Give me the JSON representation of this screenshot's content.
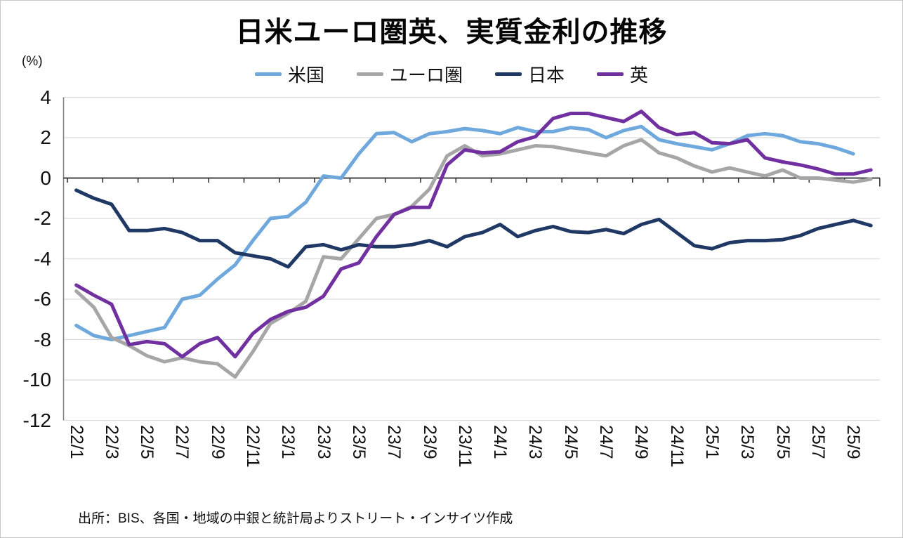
{
  "header": {
    "title": "日米ユーロ圏英、実質金利の推移",
    "y_axis_unit": "(%)"
  },
  "source_note": "出所：BIS、各国・地域の中銀と統計局よりストリート・インサイツ作成",
  "chart_data": {
    "type": "line",
    "title": "日米ユーロ圏英、実質金利の推移",
    "ylabel": "(%)",
    "xlabel": "",
    "ylim": [
      -12,
      4
    ],
    "ytick_step": 2,
    "grid": true,
    "legend_position": "top",
    "x_tick_labels": [
      "22/1",
      "22/3",
      "22/5",
      "22/7",
      "22/9",
      "22/11",
      "23/1",
      "23/3",
      "23/5",
      "23/7",
      "23/9",
      "23/11",
      "24/1",
      "24/3",
      "24/5",
      "24/7",
      "24/9",
      "24/11",
      "25/1",
      "25/3",
      "25/5",
      "25/7",
      "25/9"
    ],
    "categories": [
      "22/1",
      "22/2",
      "22/3",
      "22/4",
      "22/5",
      "22/6",
      "22/7",
      "22/8",
      "22/9",
      "22/10",
      "22/11",
      "22/12",
      "23/1",
      "23/2",
      "23/3",
      "23/4",
      "23/5",
      "23/6",
      "23/7",
      "23/8",
      "23/9",
      "23/10",
      "23/11",
      "23/12",
      "24/1",
      "24/2",
      "24/3",
      "24/4",
      "24/5",
      "24/6",
      "24/7",
      "24/8",
      "24/9",
      "24/10",
      "24/11",
      "24/12",
      "25/1",
      "25/2",
      "25/3",
      "25/4",
      "25/5",
      "25/6",
      "25/7",
      "25/8",
      "25/9",
      "25/10"
    ],
    "series": [
      {
        "name": "米国",
        "color": "#6FA8DC",
        "values": [
          -7.3,
          -7.8,
          -8.0,
          -7.8,
          -7.6,
          -7.4,
          -6.0,
          -5.8,
          -5.0,
          -4.3,
          -3.1,
          -2.0,
          -1.9,
          -1.2,
          0.1,
          0.0,
          1.2,
          2.2,
          2.25,
          1.8,
          2.2,
          2.3,
          2.45,
          2.35,
          2.2,
          2.5,
          2.3,
          2.3,
          2.5,
          2.4,
          2.0,
          2.35,
          2.55,
          1.9,
          1.7,
          1.55,
          1.4,
          1.7,
          2.1,
          2.2,
          2.1,
          1.8,
          1.7,
          1.5,
          1.2,
          null
        ]
      },
      {
        "name": "ユーロ圏",
        "color": "#A6A6A6",
        "values": [
          -5.6,
          -6.4,
          -7.9,
          -8.3,
          -8.8,
          -9.1,
          -8.9,
          -9.1,
          -9.2,
          -9.85,
          -8.6,
          -7.2,
          -6.7,
          -6.1,
          -3.9,
          -4.0,
          -3.0,
          -2.0,
          -1.8,
          -1.4,
          -0.55,
          1.1,
          1.6,
          1.1,
          1.2,
          1.4,
          1.6,
          1.55,
          1.4,
          1.25,
          1.1,
          1.6,
          1.9,
          1.25,
          1.0,
          0.6,
          0.3,
          0.5,
          0.3,
          0.1,
          0.4,
          0.0,
          0.0,
          -0.1,
          -0.2,
          -0.05
        ]
      },
      {
        "name": "日本",
        "color": "#1F3864",
        "values": [
          -0.6,
          -1.0,
          -1.3,
          -2.6,
          -2.6,
          -2.5,
          -2.7,
          -3.1,
          -3.1,
          -3.7,
          -3.85,
          -4.0,
          -4.4,
          -3.4,
          -3.3,
          -3.55,
          -3.3,
          -3.4,
          -3.4,
          -3.3,
          -3.1,
          -3.4,
          -2.9,
          -2.7,
          -2.3,
          -2.9,
          -2.6,
          -2.4,
          -2.65,
          -2.7,
          -2.55,
          -2.75,
          -2.3,
          -2.05,
          -2.7,
          -3.35,
          -3.5,
          -3.2,
          -3.1,
          -3.1,
          -3.05,
          -2.85,
          -2.5,
          -2.3,
          -2.1,
          -2.35
        ]
      },
      {
        "name": "英",
        "color": "#7030A0",
        "values": [
          -5.3,
          -5.8,
          -6.25,
          -8.25,
          -8.1,
          -8.2,
          -8.85,
          -8.2,
          -7.9,
          -8.85,
          -7.7,
          -7.0,
          -6.6,
          -6.4,
          -5.85,
          -4.5,
          -4.2,
          -2.9,
          -1.8,
          -1.45,
          -1.45,
          0.65,
          1.4,
          1.25,
          1.3,
          1.8,
          2.05,
          2.95,
          3.2,
          3.2,
          3.0,
          2.8,
          3.3,
          2.5,
          2.15,
          2.25,
          1.75,
          1.7,
          1.9,
          1.0,
          0.8,
          0.65,
          0.45,
          0.2,
          0.2,
          0.4
        ]
      }
    ]
  }
}
